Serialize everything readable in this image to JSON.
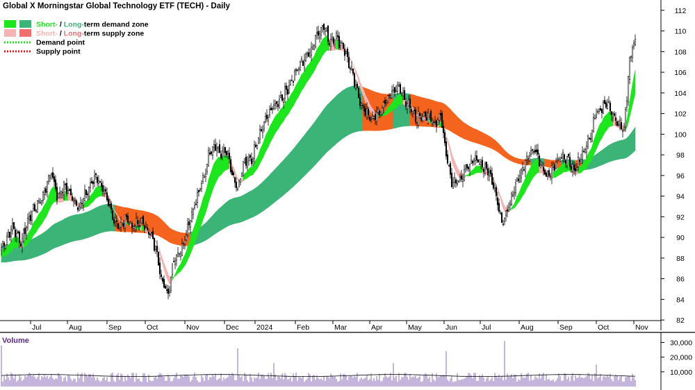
{
  "chart_data": [
    {
      "type": "candlestick",
      "title": "Global X Morningstar Global Technology ETF (TECH) - Daily",
      "legend": {
        "placement": "top-left",
        "demand_zone": {
          "pre": "",
          "short": "Short-",
          "mid": " / ",
          "long": "Long-",
          "post": "term demand zone"
        },
        "supply_zone": {
          "pre": "",
          "short": "Short-",
          "mid": " / ",
          "long": "Long-",
          "post": "term supply zone"
        },
        "demand_point": "Demand point",
        "supply_point": "Supply point"
      },
      "x_ticks": [
        "Jul",
        "Aug",
        "Sep",
        "Oct",
        "Nov",
        "Dec",
        "2024",
        "Feb",
        "Mar",
        "Apr",
        "May",
        "Jun",
        "Jul",
        "Aug",
        "Sep",
        "Oct",
        "Nov"
      ],
      "y_ticks": [
        82,
        84,
        86,
        88,
        90,
        92,
        94,
        96,
        98,
        100,
        102,
        104,
        106,
        108,
        110,
        112
      ],
      "ylim": [
        81,
        113
      ],
      "grid": false,
      "colors": {
        "short_demand": "#1ee61e",
        "long_demand": "#3cb478",
        "short_supply": "#f5b4b4",
        "long_supply": "#f5641e",
        "demand_point": "#22dd22",
        "supply_point": "#e11919",
        "candle": "#000000",
        "axis": "#000000"
      },
      "price_waypoints": [
        [
          0,
          89
        ],
        [
          8,
          91
        ],
        [
          14,
          89.5
        ],
        [
          20,
          92
        ],
        [
          30,
          94
        ],
        [
          36,
          96.5
        ],
        [
          40,
          94
        ],
        [
          46,
          95
        ],
        [
          50,
          94
        ],
        [
          56,
          93
        ],
        [
          62,
          94.5
        ],
        [
          68,
          96
        ],
        [
          72,
          95
        ],
        [
          80,
          92
        ],
        [
          86,
          91
        ],
        [
          90,
          92
        ],
        [
          94,
          91
        ],
        [
          100,
          91.5
        ],
        [
          104,
          91
        ],
        [
          108,
          90
        ],
        [
          112,
          88.5
        ],
        [
          116,
          85.5
        ],
        [
          120,
          84.5
        ],
        [
          124,
          88
        ],
        [
          128,
          88.5
        ],
        [
          132,
          90
        ],
        [
          136,
          92
        ],
        [
          140,
          93.5
        ],
        [
          146,
          96
        ],
        [
          150,
          98.5
        ],
        [
          154,
          99
        ],
        [
          158,
          98
        ],
        [
          162,
          98.5
        ],
        [
          166,
          96
        ],
        [
          170,
          94.5
        ],
        [
          174,
          97
        ],
        [
          180,
          97.5
        ],
        [
          186,
          100
        ],
        [
          192,
          102
        ],
        [
          198,
          103
        ],
        [
          204,
          104
        ],
        [
          210,
          105.5
        ],
        [
          216,
          107
        ],
        [
          222,
          108
        ],
        [
          228,
          110
        ],
        [
          232,
          110.5
        ],
        [
          236,
          109
        ],
        [
          240,
          109.5
        ],
        [
          246,
          108.5
        ],
        [
          252,
          106
        ],
        [
          256,
          104
        ],
        [
          262,
          102
        ],
        [
          268,
          101.5
        ],
        [
          274,
          102.5
        ],
        [
          280,
          104
        ],
        [
          286,
          104.5
        ],
        [
          292,
          103
        ],
        [
          298,
          101.5
        ],
        [
          304,
          102
        ],
        [
          308,
          101.5
        ],
        [
          312,
          101
        ],
        [
          316,
          102
        ],
        [
          320,
          98
        ],
        [
          324,
          95.5
        ],
        [
          328,
          95.5
        ],
        [
          332,
          96
        ],
        [
          336,
          97
        ],
        [
          342,
          97.5
        ],
        [
          346,
          97
        ],
        [
          350,
          96.5
        ],
        [
          354,
          95
        ],
        [
          358,
          93
        ],
        [
          360,
          91.5
        ],
        [
          364,
          92.5
        ],
        [
          368,
          94.5
        ],
        [
          372,
          96
        ],
        [
          376,
          97
        ],
        [
          380,
          98
        ],
        [
          384,
          98.5
        ],
        [
          388,
          97
        ],
        [
          392,
          96
        ],
        [
          396,
          96.5
        ],
        [
          400,
          97.5
        ],
        [
          404,
          98
        ],
        [
          408,
          97.5
        ],
        [
          412,
          96.5
        ],
        [
          416,
          97.5
        ],
        [
          420,
          98.5
        ],
        [
          424,
          100
        ],
        [
          428,
          102
        ],
        [
          432,
          102.5
        ],
        [
          436,
          103
        ],
        [
          440,
          102
        ],
        [
          444,
          101
        ],
        [
          448,
          100.5
        ],
        [
          452,
          107
        ],
        [
          454,
          108.5
        ],
        [
          456,
          109.2
        ]
      ],
      "volume": {
        "label": "Volume",
        "ticks": [
          "30,000",
          "20,000",
          "10,000"
        ],
        "tick_values": [
          30000,
          20000,
          10000
        ],
        "ylim": [
          0,
          34000
        ],
        "average": 7500,
        "spikes": [
          [
            0,
            28000
          ],
          [
            170,
            26000
          ],
          [
            196,
            16000
          ],
          [
            282,
            16000
          ],
          [
            320,
            24000
          ],
          [
            362,
            31000
          ],
          [
            428,
            15000
          ]
        ]
      }
    }
  ]
}
